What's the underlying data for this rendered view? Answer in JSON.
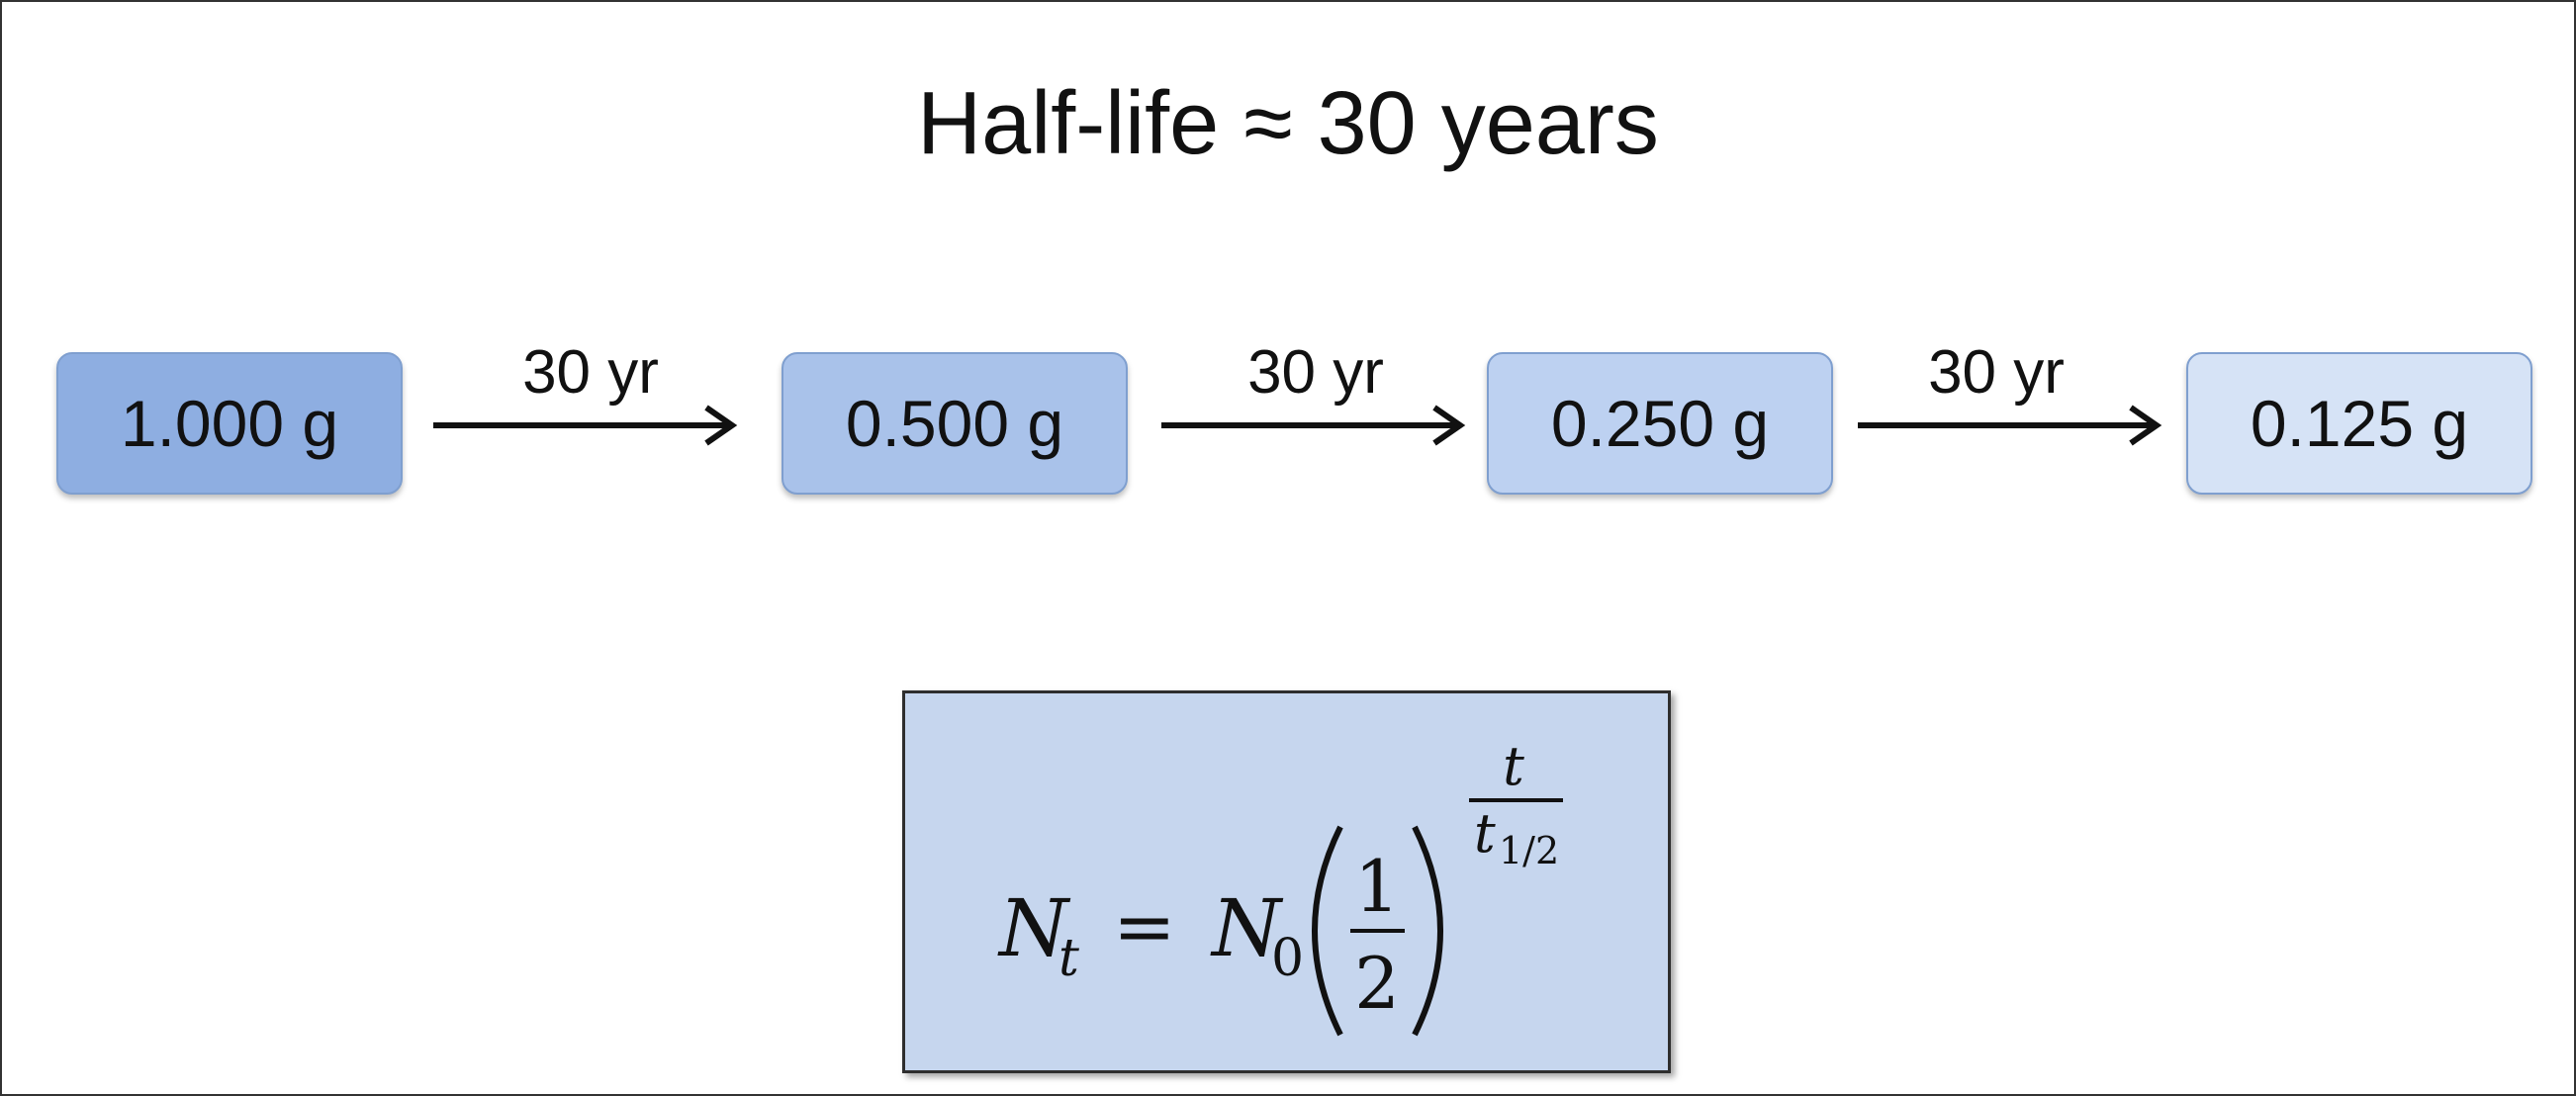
{
  "title": "Half-life ≈ 30 years",
  "steps": [
    {
      "label": "1.000 g",
      "color": "#8eaee1"
    },
    {
      "label": "0.500 g",
      "color": "#a9c2ea"
    },
    {
      "label": "0.250 g",
      "color": "#bdd1f1"
    },
    {
      "label": "0.125 g",
      "color": "#d6e3f6"
    }
  ],
  "arrows": [
    {
      "label": "30 yr"
    },
    {
      "label": "30 yr"
    },
    {
      "label": "30 yr"
    }
  ],
  "formula": {
    "lhs_var": "N",
    "lhs_sub": "t",
    "equals": "=",
    "rhs_var": "N",
    "rhs_sub": "0",
    "numerator": "1",
    "denominator": "2",
    "exp_numerator": "t",
    "exp_den_var": "t",
    "exp_den_sub": "1/2"
  }
}
